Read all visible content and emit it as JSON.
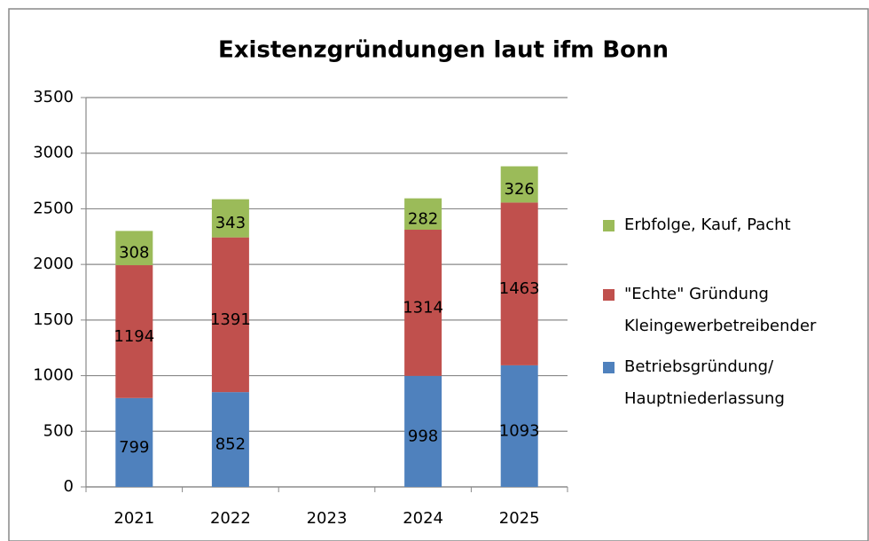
{
  "chart_data": {
    "type": "stacked_bar",
    "title": "Existenzgründungen laut ifm Bonn",
    "categories": [
      "2021",
      "2022",
      "2023",
      "2024",
      "2025"
    ],
    "series": [
      {
        "name": "Betriebsgründung/\nHauptniederlassung",
        "color": "#4f81bd",
        "values": [
          799,
          852,
          null,
          998,
          1093
        ]
      },
      {
        "name": "\"Echte\" Gründung\nKleingewerbetreibender",
        "color": "#c0504d",
        "values": [
          1194,
          1391,
          null,
          1314,
          1463
        ]
      },
      {
        "name": "Erbfolge, Kauf, Pacht",
        "color": "#9bbb59",
        "values": [
          308,
          343,
          null,
          282,
          326
        ]
      }
    ],
    "ylim": [
      0,
      3500
    ],
    "yticks": [
      0,
      500,
      1000,
      1500,
      2000,
      2500,
      3000,
      3500
    ],
    "grid": true,
    "legend": "right"
  }
}
